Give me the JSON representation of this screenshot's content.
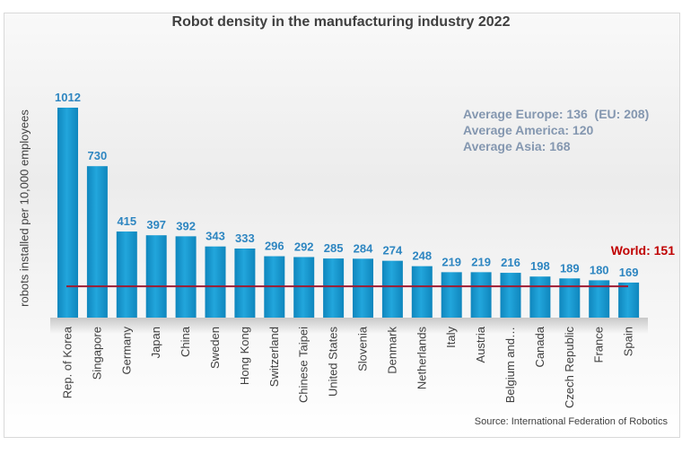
{
  "chart_data": {
    "type": "bar",
    "title": "Robot density in the manufacturing industry 2022",
    "ylabel": "robots installed per 10,000 employees",
    "xlabel": "",
    "categories": [
      "Rep. of Korea",
      "Singapore",
      "Germany",
      "Japan",
      "China",
      "Sweden",
      "Hong Kong",
      "Switzerland",
      "Chinese Taipei",
      "United States",
      "Slovenia",
      "Denmark",
      "Netherlands",
      "Italy",
      "Austria",
      "Belgium and…",
      "Canada",
      "Czech Republic",
      "France",
      "Spain"
    ],
    "values": [
      1012,
      730,
      415,
      397,
      392,
      343,
      333,
      296,
      292,
      285,
      284,
      274,
      248,
      219,
      219,
      216,
      198,
      189,
      180,
      169
    ],
    "ylim": [
      0,
      1012
    ],
    "grid": false,
    "reference_line": {
      "label": "World: 151",
      "value": 151,
      "color": "#c00000"
    },
    "annotations": [
      "Average Europe: 136  (EU: 208)",
      "Average America: 120",
      "Average Asia: 168"
    ],
    "source": "Source: International Federation of Robotics",
    "colors": {
      "bar": "#1a9bd0",
      "bar_label": "#2e86c1",
      "reference": "#9e1b32",
      "annotation": "#8497b0"
    }
  }
}
